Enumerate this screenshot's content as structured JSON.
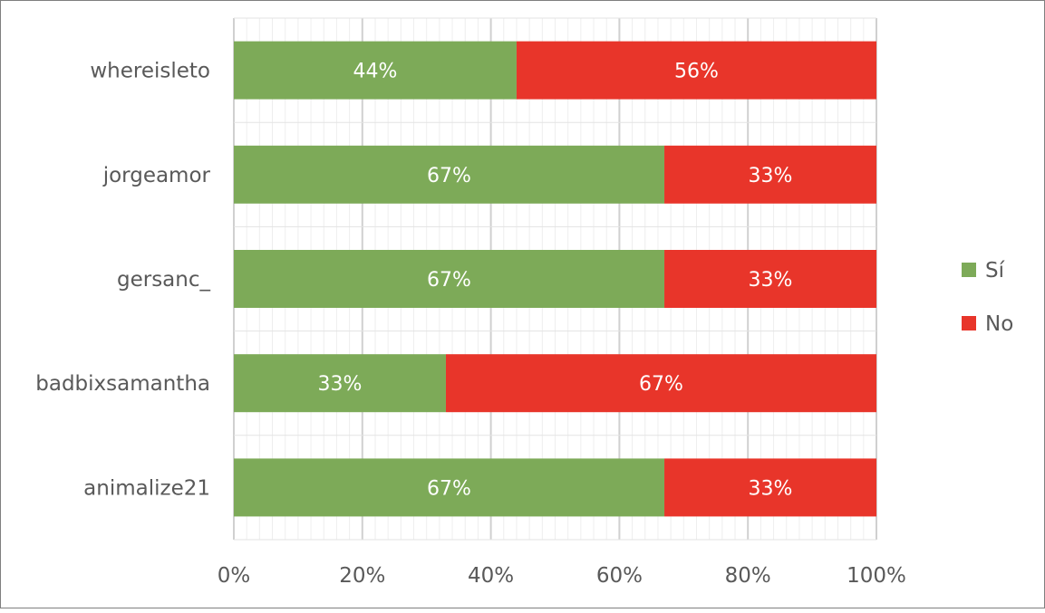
{
  "chart_data": {
    "type": "bar",
    "orientation": "horizontal",
    "stacked": true,
    "percent_stacked": true,
    "categories": [
      "whereisleto",
      "jorgeamor",
      "gersanc_",
      "badbixsamantha",
      "animalize21"
    ],
    "series": [
      {
        "name": "Sí",
        "values": [
          44,
          67,
          67,
          33,
          67
        ],
        "labels": [
          "44%",
          "67%",
          "67%",
          "33%",
          "67%"
        ],
        "color": "#7daa58"
      },
      {
        "name": "No",
        "values": [
          56,
          33,
          33,
          67,
          33
        ],
        "labels": [
          "56%",
          "33%",
          "33%",
          "67%",
          "33%"
        ],
        "color": "#e8352a"
      }
    ],
    "xlim": [
      0,
      100
    ],
    "xticks": [
      "0%",
      "20%",
      "40%",
      "60%",
      "80%",
      "100%"
    ],
    "grid": true,
    "legend": "right"
  }
}
